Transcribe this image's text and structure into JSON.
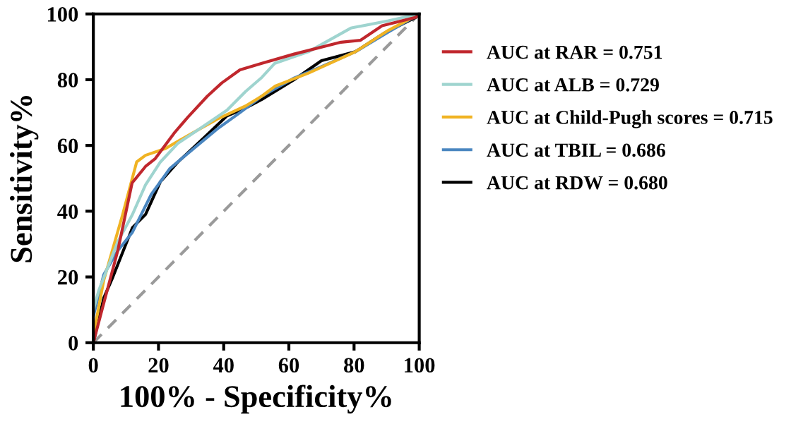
{
  "chart_data": {
    "type": "line",
    "xlabel": "100% - Specificity%",
    "ylabel": "Sensitivity%",
    "xlim": [
      0,
      100
    ],
    "ylim": [
      0,
      100
    ],
    "xticks": [
      0,
      20,
      40,
      60,
      80,
      100
    ],
    "yticks": [
      0,
      20,
      40,
      60,
      80,
      100
    ],
    "grid": false,
    "legend": "right",
    "marker": "none",
    "line_style": "solid",
    "series": [
      {
        "name": "AUC at RAR = 0.751",
        "color": "#c0272d",
        "x": [
          0,
          3.2,
          7.5,
          11.9,
          16,
          19,
          25,
          29,
          35,
          39.4,
          45,
          51.7,
          61.6,
          76,
          82,
          88.6,
          99,
          100
        ],
        "values": [
          0,
          12,
          28,
          48.6,
          53.6,
          56,
          64,
          68.6,
          75,
          79,
          83,
          85,
          87.8,
          91.4,
          92,
          96.4,
          99,
          100
        ]
      },
      {
        "name": "AUC at ALB = 0.729",
        "color": "#9fd4cf",
        "x": [
          0,
          1.7,
          7.5,
          12,
          16,
          20.6,
          26,
          33.6,
          41,
          46.7,
          51.7,
          55.7,
          66,
          79,
          90.5,
          100
        ],
        "values": [
          10,
          16,
          30.7,
          39,
          48,
          55,
          60.7,
          65.7,
          70.7,
          76.4,
          80.7,
          85,
          88.5,
          95.7,
          97.9,
          100
        ]
      },
      {
        "name": "AUC at Child-Pugh scores = 0.715",
        "color": "#f0b323",
        "x": [
          0,
          3.2,
          9,
          13.3,
          16,
          22,
          29,
          38,
          46.7,
          51.7,
          55.7,
          66,
          80.4,
          90.5,
          100
        ],
        "values": [
          2,
          19,
          39,
          55,
          57,
          59,
          63,
          68,
          72,
          75,
          78,
          82,
          88.5,
          95,
          100
        ]
      },
      {
        "name": "AUC at TBIL = 0.686",
        "color": "#4a86c0",
        "x": [
          0,
          3.2,
          7.5,
          12,
          17.7,
          23.5,
          30.7,
          38,
          45,
          51.7,
          61.6,
          70,
          80.4,
          90.5,
          100
        ],
        "values": [
          8,
          20.7,
          28,
          33.6,
          45,
          53,
          59,
          65,
          70,
          75,
          80.5,
          84,
          88.5,
          94.5,
          100
        ]
      },
      {
        "name": "AUC at RDW = 0.680",
        "color": "#000000",
        "x": [
          0,
          3.2,
          6,
          12,
          16,
          20.6,
          26,
          33.6,
          41,
          46.7,
          51.7,
          61.6,
          70,
          80.4,
          89,
          99,
          100
        ],
        "values": [
          0,
          13.6,
          20,
          35,
          39,
          49,
          55,
          62,
          69,
          71.4,
          74,
          80,
          85.8,
          88.5,
          94,
          99,
          100
        ]
      },
      {
        "color": "#9a9a9a",
        "line_style": "dashed",
        "x": [
          0,
          100
        ],
        "values": [
          0,
          100
        ]
      }
    ]
  }
}
